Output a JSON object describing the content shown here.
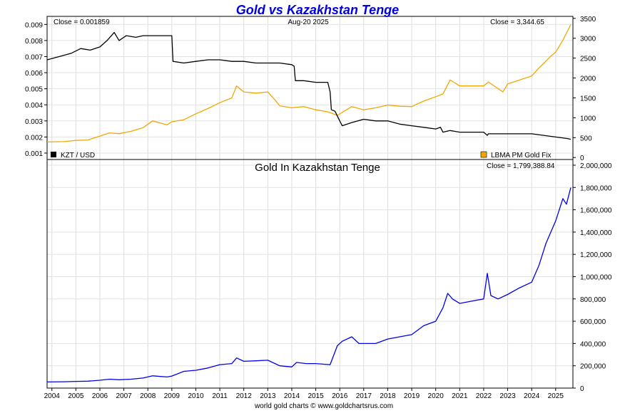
{
  "header": {
    "title": "Gold vs Kazakhstan Tenge",
    "date": "Aug-20  2025",
    "close_kzt": "Close = 0.001859",
    "close_gold": "Close = 3,344.65",
    "close_tenge": "Close = 1,799,388.84"
  },
  "footer": {
    "text": "world gold charts © www.goldchartsrus.com"
  },
  "colors": {
    "title": "#0000dd",
    "kzt": "#000000",
    "gold": "#f0a800",
    "tenge": "#0000ee",
    "grid": "#d8d8d8"
  },
  "chart_data": [
    {
      "type": "line",
      "title": "Gold vs Kazakhstan Tenge",
      "grid": true,
      "legend": "bottom",
      "x_ticks": [
        "2004",
        "2005",
        "2006",
        "2007",
        "2008",
        "2009",
        "2010",
        "2011",
        "2012",
        "2013",
        "2014",
        "2015",
        "2016",
        "2017",
        "2018",
        "2019",
        "2020",
        "2021",
        "2022",
        "2023",
        "2024",
        "2025"
      ],
      "y_left": {
        "ylim": [
          0.0006,
          0.0095
        ],
        "ticks": [
          "0.009",
          "0.008",
          "0.007",
          "0.006",
          "0.005",
          "0.004",
          "0.003",
          "0.002",
          "0.001"
        ]
      },
      "y_right": {
        "ylim": [
          -50,
          3550
        ],
        "ticks": [
          "3500",
          "3000",
          "2500",
          "2000",
          "1500",
          "1000",
          "500",
          "0"
        ]
      },
      "series": [
        {
          "name": "KZT / USD",
          "axis": "left",
          "x": [
            2003.8,
            2004.3,
            2004.8,
            2005.2,
            2005.6,
            2006.0,
            2006.3,
            2006.6,
            2006.8,
            2007.1,
            2007.5,
            2007.8,
            2008.2,
            2008.6,
            2009.0,
            2009.05,
            2009.5,
            2010.0,
            2010.5,
            2011.0,
            2011.5,
            2012.0,
            2012.5,
            2013.0,
            2013.5,
            2014.0,
            2014.1,
            2014.15,
            2014.5,
            2015.0,
            2015.5,
            2015.6,
            2015.65,
            2015.8,
            2016.0,
            2016.1,
            2016.5,
            2017.0,
            2017.5,
            2018.0,
            2018.5,
            2019.0,
            2019.5,
            2020.0,
            2020.2,
            2020.3,
            2020.6,
            2021.0,
            2021.5,
            2022.0,
            2022.15,
            2022.2,
            2022.5,
            2023.0,
            2023.5,
            2024.0,
            2024.5,
            2025.0,
            2025.5,
            2025.63
          ],
          "values": [
            0.0068,
            0.007,
            0.0072,
            0.0075,
            0.0074,
            0.0076,
            0.008,
            0.0085,
            0.008,
            0.0083,
            0.0082,
            0.0083,
            0.0083,
            0.0083,
            0.0083,
            0.0067,
            0.0066,
            0.0067,
            0.0068,
            0.0068,
            0.0067,
            0.0067,
            0.0066,
            0.0066,
            0.0066,
            0.0065,
            0.0064,
            0.0055,
            0.0055,
            0.0054,
            0.0054,
            0.0048,
            0.0037,
            0.0036,
            0.003,
            0.0027,
            0.0029,
            0.0031,
            0.003,
            0.003,
            0.0028,
            0.0027,
            0.0026,
            0.0025,
            0.0026,
            0.0023,
            0.0024,
            0.0023,
            0.0023,
            0.0023,
            0.0021,
            0.0022,
            0.0022,
            0.0022,
            0.0022,
            0.0022,
            0.0021,
            0.002,
            0.0019,
            0.001859
          ]
        },
        {
          "name": "LBMA PM Gold Fix",
          "axis": "right",
          "x": [
            2003.8,
            2004.5,
            2005.0,
            2005.5,
            2006.0,
            2006.4,
            2006.8,
            2007.3,
            2007.8,
            2008.2,
            2008.8,
            2009.0,
            2009.5,
            2010.0,
            2010.5,
            2011.0,
            2011.5,
            2011.7,
            2012.0,
            2012.5,
            2013.0,
            2013.3,
            2013.5,
            2014.0,
            2014.5,
            2015.0,
            2015.5,
            2015.9,
            2016.5,
            2017.0,
            2017.5,
            2018.0,
            2018.5,
            2019.0,
            2019.5,
            2020.0,
            2020.3,
            2020.6,
            2021.0,
            2021.5,
            2022.0,
            2022.2,
            2022.8,
            2023.0,
            2023.5,
            2024.0,
            2024.3,
            2024.8,
            2025.0,
            2025.3,
            2025.63
          ],
          "values": [
            390,
            400,
            430,
            440,
            540,
            620,
            600,
            660,
            750,
            920,
            820,
            900,
            950,
            1100,
            1230,
            1380,
            1500,
            1800,
            1650,
            1620,
            1650,
            1450,
            1300,
            1250,
            1280,
            1200,
            1150,
            1060,
            1280,
            1200,
            1250,
            1320,
            1290,
            1280,
            1420,
            1530,
            1600,
            1950,
            1800,
            1800,
            1800,
            1900,
            1650,
            1850,
            1950,
            2050,
            2250,
            2550,
            2650,
            2950,
            3344.65
          ]
        }
      ]
    },
    {
      "type": "line",
      "title": "Gold In Kazakhstan Tenge",
      "grid": true,
      "x_ticks": [
        "2004",
        "2005",
        "2006",
        "2007",
        "2008",
        "2009",
        "2010",
        "2011",
        "2012",
        "2013",
        "2014",
        "2015",
        "2016",
        "2017",
        "2018",
        "2019",
        "2020",
        "2021",
        "2022",
        "2023",
        "2024",
        "2025"
      ],
      "ylim": [
        0,
        2000000
      ],
      "y_ticks": [
        "2,000,000",
        "1,800,000",
        "1,600,000",
        "1,400,000",
        "1,200,000",
        "1,000,000",
        "800,000",
        "600,000",
        "400,000",
        "200,000",
        "0"
      ],
      "series": [
        {
          "name": "Gold In Kazakhstan Tenge",
          "x": [
            2003.8,
            2004.5,
            2005.0,
            2005.5,
            2006.0,
            2006.4,
            2006.8,
            2007.3,
            2007.8,
            2008.2,
            2008.8,
            2009.0,
            2009.5,
            2010.0,
            2010.5,
            2011.0,
            2011.5,
            2011.7,
            2012.0,
            2012.5,
            2013.0,
            2013.3,
            2013.5,
            2014.0,
            2014.2,
            2014.6,
            2015.0,
            2015.6,
            2015.9,
            2016.1,
            2016.5,
            2016.8,
            2017.0,
            2017.5,
            2018.0,
            2018.5,
            2019.0,
            2019.5,
            2020.0,
            2020.3,
            2020.5,
            2020.7,
            2021.0,
            2021.5,
            2022.0,
            2022.15,
            2022.3,
            2022.6,
            2023.0,
            2023.5,
            2024.0,
            2024.3,
            2024.6,
            2025.0,
            2025.3,
            2025.45,
            2025.63
          ],
          "values": [
            55000,
            57000,
            60000,
            62000,
            70000,
            80000,
            75000,
            80000,
            90000,
            110000,
            100000,
            108000,
            150000,
            160000,
            180000,
            210000,
            220000,
            270000,
            240000,
            245000,
            250000,
            220000,
            200000,
            190000,
            230000,
            220000,
            220000,
            210000,
            380000,
            420000,
            460000,
            400000,
            400000,
            400000,
            440000,
            460000,
            480000,
            560000,
            600000,
            720000,
            850000,
            800000,
            760000,
            780000,
            800000,
            1030000,
            830000,
            800000,
            840000,
            900000,
            950000,
            1100000,
            1300000,
            1500000,
            1700000,
            1650000,
            1799388.84
          ]
        }
      ]
    }
  ]
}
